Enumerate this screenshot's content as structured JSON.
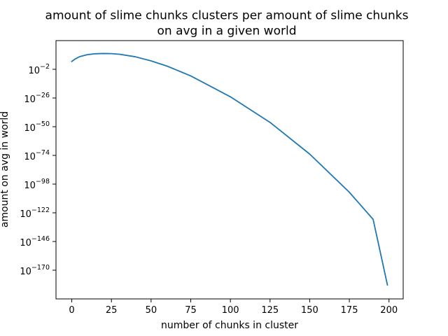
{
  "chart_data": {
    "type": "line",
    "title_lines": [
      "amount of slime chunks clusters per amount of slime chunks",
      "on avg in a given world"
    ],
    "xlabel": "number of chunks in cluster",
    "ylabel": "amount on avg in world",
    "xlim": [
      -9.95,
      208.95
    ],
    "ylim_log10": [
      -194,
      22
    ],
    "y_scale": "log",
    "x_ticks": [
      0,
      25,
      50,
      75,
      100,
      125,
      150,
      175,
      200
    ],
    "x_tick_labels": [
      "0",
      "25",
      "50",
      "75",
      "100",
      "125",
      "150",
      "175",
      "200"
    ],
    "y_ticks_log10": [
      -2,
      -26,
      -50,
      -74,
      -98,
      -122,
      -146,
      -170
    ],
    "y_tick_labels": [
      {
        "base": "10",
        "exp": "−2"
      },
      {
        "base": "10",
        "exp": "−26"
      },
      {
        "base": "10",
        "exp": "−50"
      },
      {
        "base": "10",
        "exp": "−74"
      },
      {
        "base": "10",
        "exp": "−98"
      },
      {
        "base": "10",
        "exp": "−122"
      },
      {
        "base": "10",
        "exp": "−146"
      },
      {
        "base": "10",
        "exp": "−170"
      }
    ],
    "grid": false,
    "series": [
      {
        "color": "#1f77b4",
        "x": [
          0,
          2,
          5,
          10,
          15,
          20,
          25,
          30,
          40,
          50,
          60,
          75,
          100,
          125,
          150,
          175,
          190,
          199
        ],
        "y_log10": [
          4.6,
          6.5,
          8.6,
          10.3,
          11.0,
          11.2,
          11.1,
          10.6,
          8.5,
          5.0,
          0.7,
          -7.5,
          -25.0,
          -46.4,
          -72.9,
          -104.8,
          -127.5,
          -182.3
        ]
      }
    ]
  }
}
